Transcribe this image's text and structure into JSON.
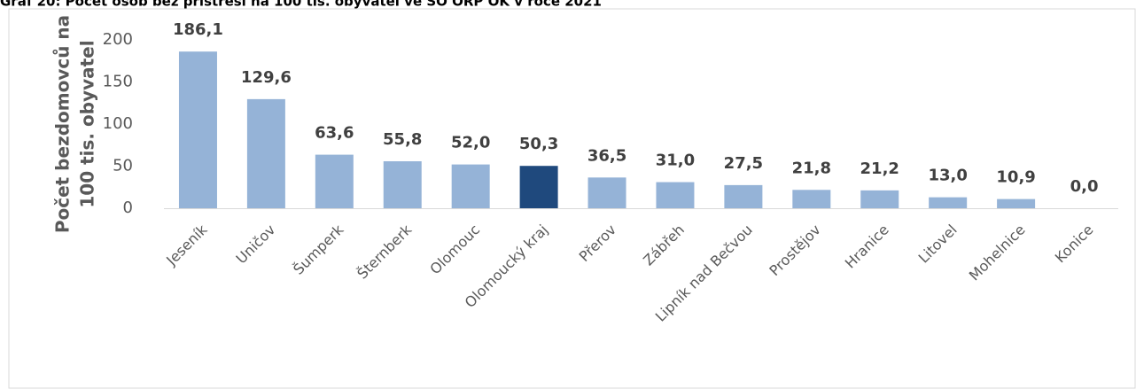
{
  "chart_data": {
    "type": "bar",
    "title": "Graf 20: Počet osob bez přístřeší na 100 tis. obyvatel ve SO ORP OK v roce 2021",
    "y_label": [
      "Počet bezdomovců na",
      "100 tis. obyvatel"
    ],
    "categories": [
      "Jeseník",
      "Uničov",
      "Šumperk",
      "Šternberk",
      "Olomouc",
      "Olomoucký kraj",
      "Přerov",
      "Zábřeh",
      "Lipník nad Bečvou",
      "Prostějov",
      "Hranice",
      "Litovel",
      "Mohelnice",
      "Konice"
    ],
    "values": [
      186.1,
      129.6,
      63.6,
      55.8,
      52.0,
      50.3,
      36.5,
      31.0,
      27.5,
      21.8,
      21.2,
      13.0,
      10.9,
      0.0
    ],
    "value_labels": [
      "186,1",
      "129,6",
      "63,6",
      "55,8",
      "52,0",
      "50,3",
      "36,5",
      "31,0",
      "27,5",
      "21,8",
      "21,2",
      "13,0",
      "10,9",
      "0,0"
    ],
    "colors": [
      "#95b3d7",
      "#95b3d7",
      "#95b3d7",
      "#95b3d7",
      "#95b3d7",
      "#1f497d",
      "#95b3d7",
      "#95b3d7",
      "#95b3d7",
      "#95b3d7",
      "#95b3d7",
      "#95b3d7",
      "#95b3d7",
      "#95b3d7"
    ],
    "ylim": [
      0,
      200
    ],
    "yticks": [
      0,
      50,
      100,
      150,
      200
    ],
    "grid": false
  }
}
